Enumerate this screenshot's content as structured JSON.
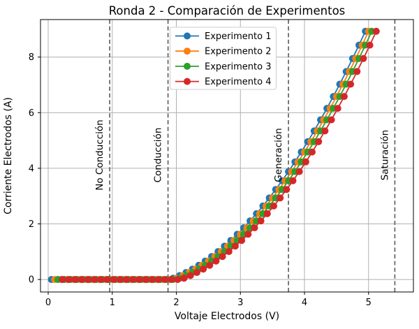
{
  "title": "Ronda 2 - Comparación de Experimentos",
  "axes": {
    "xlabel": "Voltaje Electrodos (V)",
    "ylabel": "Corriente Electrodos (A)",
    "x_ticks": [
      0,
      1,
      2,
      3,
      4,
      5
    ],
    "y_ticks": [
      0,
      2,
      4,
      6,
      8
    ],
    "xlim": [
      -0.12,
      5.7
    ],
    "ylim": [
      -0.45,
      9.35
    ],
    "grid": true,
    "grid_color": "#b0b0b0",
    "spine_color": "#000000"
  },
  "legend": {
    "position": "upper center-left inside",
    "entries": [
      "Experimento 1",
      "Experimento 2",
      "Experimento 3",
      "Experimento 4"
    ],
    "border_color": "#cccccc",
    "background": "#ffffff"
  },
  "chart_data": {
    "type": "line",
    "title": "Ronda 2 - Comparación de Experimentos",
    "xlabel": "Voltaje Electrodos (V)",
    "ylabel": "Corriente Electrodos (A)",
    "xlim": [
      -0.12,
      5.7
    ],
    "ylim": [
      -0.45,
      9.35
    ],
    "grid": true,
    "legend_position": "upper center-left",
    "marker": "o",
    "x": [
      0.05,
      0.15,
      0.25,
      0.35,
      0.45,
      0.55,
      0.65,
      0.75,
      0.85,
      0.95,
      1.05,
      1.15,
      1.25,
      1.35,
      1.45,
      1.55,
      1.65,
      1.75,
      1.85,
      1.95,
      2.05,
      2.15,
      2.25,
      2.35,
      2.45,
      2.55,
      2.65,
      2.75,
      2.85,
      2.95,
      3.05,
      3.15,
      3.25,
      3.35,
      3.45,
      3.55,
      3.65,
      3.75,
      3.85,
      3.95,
      4.05,
      4.15,
      4.25,
      4.35,
      4.45,
      4.55,
      4.65,
      4.75,
      4.85,
      4.95
    ],
    "y_base": [
      0,
      0,
      0,
      0,
      0,
      0,
      0,
      0,
      0,
      0,
      0,
      0,
      0,
      0,
      0,
      0,
      0,
      0,
      0,
      0.044,
      0.14,
      0.25,
      0.373,
      0.511,
      0.662,
      0.827,
      1.006,
      1.198,
      1.405,
      1.625,
      1.859,
      2.107,
      2.368,
      2.644,
      2.933,
      3.236,
      3.553,
      3.883,
      4.228,
      4.586,
      4.958,
      5.344,
      5.743,
      6.157,
      6.584,
      7.025,
      7.48,
      7.948,
      8.431,
      8.927
    ],
    "series": [
      {
        "name": "Experimento 1",
        "color": "#1f77b4",
        "x_offset": 0.0
      },
      {
        "name": "Experimento 2",
        "color": "#ff7f0e",
        "x_offset": 0.05
      },
      {
        "name": "Experimento 3",
        "color": "#2ca02c",
        "x_offset": 0.1
      },
      {
        "name": "Experimento 4",
        "color": "#d62728",
        "x_offset": 0.17
      }
    ],
    "annotations": [
      {
        "label": "No Conducción",
        "x": 0.96,
        "style": "dashed-vline"
      },
      {
        "label": "Conducción",
        "x": 1.87,
        "style": "dashed-vline"
      },
      {
        "label": "Generación",
        "x": 3.75,
        "style": "dashed-vline"
      },
      {
        "label": "Saturación",
        "x": 5.41,
        "style": "dashed-vline"
      }
    ],
    "annotation_line_color": "#5a5a5a"
  }
}
